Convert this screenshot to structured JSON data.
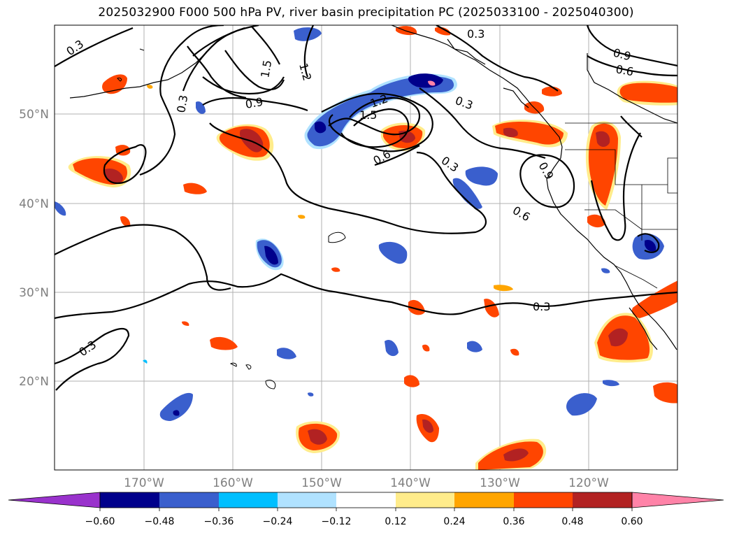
{
  "title": "2025032900 F000 500 hPa PV, river basin precipitation PC (2025033100 - 2025040300)",
  "map": {
    "lat_labels": [
      "50°N",
      "40°N",
      "30°N",
      "20°N"
    ],
    "lon_labels": [
      "170°W",
      "160°W",
      "150°W",
      "140°W",
      "130°W",
      "120°W"
    ],
    "contour_labels": [
      "0.3",
      "0.3",
      "0.3",
      "0.3",
      "0.3",
      "0.3",
      "0.3",
      "0.6",
      "0.6",
      "0.6",
      "0.9",
      "0.9",
      "0.9",
      "1.2",
      "1.2",
      "1.5",
      "1.5"
    ],
    "land_color": "#ffffff",
    "grid_color": "#b0b0b0"
  },
  "colorbar": {
    "colors": [
      "#9932cc",
      "#00008b",
      "#3a5fcd",
      "#00bfff",
      "#b0e2ff",
      "#ffffff",
      "#ffec8b",
      "#ffa500",
      "#ff4500",
      "#b22222",
      "#ff83a8"
    ],
    "ticks": [
      "−0.60",
      "−0.48",
      "−0.36",
      "−0.24",
      "−0.12",
      "0.12",
      "0.24",
      "0.36",
      "0.48",
      "0.60"
    ]
  }
}
